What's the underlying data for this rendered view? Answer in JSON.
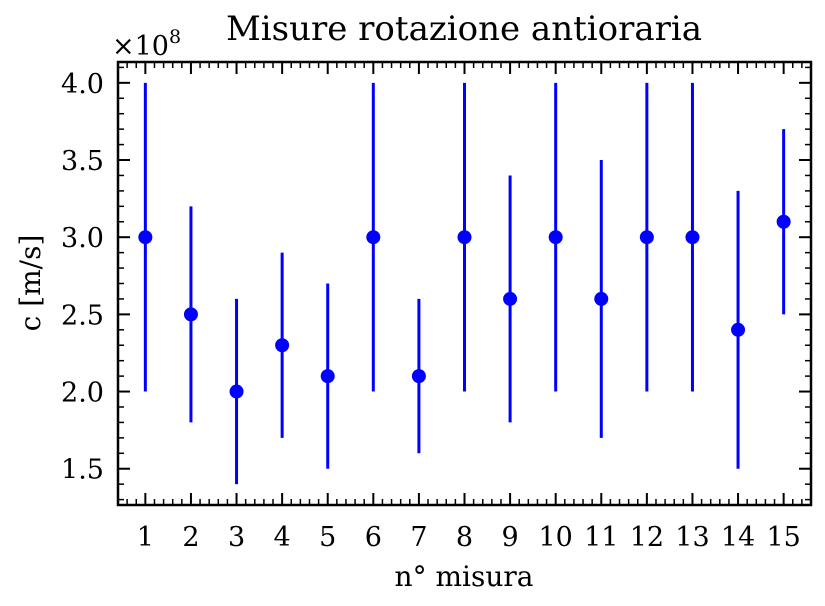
{
  "chart_data": {
    "type": "scatter",
    "title": "Misure rotazione antioraria",
    "xlabel": "n° misura",
    "ylabel": "c [m/s]",
    "y_scale_label": "×10",
    "y_scale_exponent": "8",
    "x": [
      1,
      2,
      3,
      4,
      5,
      6,
      7,
      8,
      9,
      10,
      11,
      12,
      13,
      14,
      15
    ],
    "y": [
      3.0,
      2.5,
      2.0,
      2.3,
      2.1,
      3.0,
      2.1,
      3.0,
      2.6,
      3.0,
      2.6,
      3.0,
      3.0,
      2.4,
      3.1
    ],
    "yerr": [
      1.0,
      0.7,
      0.6,
      0.6,
      0.6,
      1.0,
      0.5,
      1.0,
      0.8,
      1.0,
      0.9,
      1.0,
      1.0,
      0.9,
      0.6
    ],
    "xticks": [
      "1",
      "2",
      "3",
      "4",
      "5",
      "6",
      "7",
      "8",
      "9",
      "10",
      "11",
      "12",
      "13",
      "14",
      "15"
    ],
    "yticks": [
      "1.5",
      "2.0",
      "2.5",
      "3.0",
      "3.5",
      "4.0"
    ],
    "ytick_values": [
      1.5,
      2.0,
      2.5,
      3.0,
      3.5,
      4.0
    ],
    "xlim": [
      0.4,
      15.6
    ],
    "ylim": [
      1.265,
      4.135
    ],
    "grid": false,
    "color": "#0000ff"
  }
}
